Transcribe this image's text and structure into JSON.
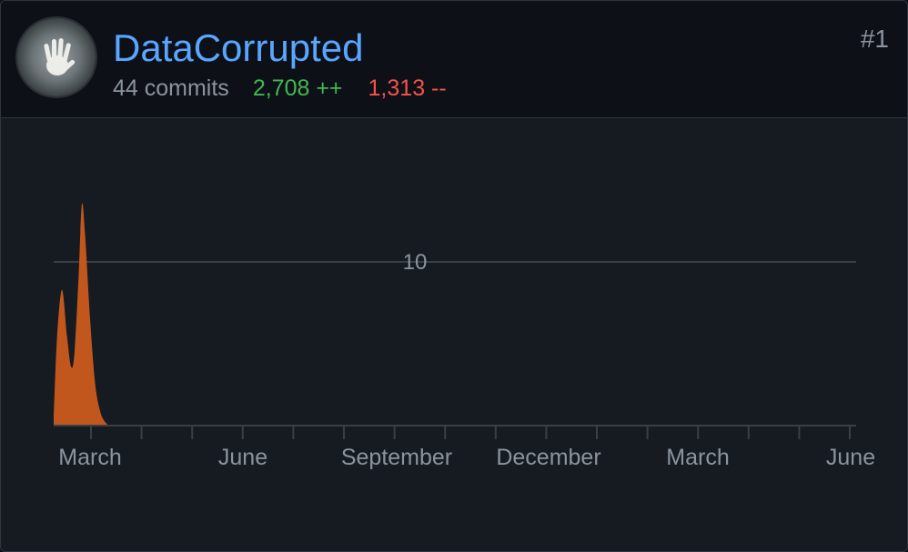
{
  "contributor": {
    "username": "DataCorrupted",
    "commits": "44 commits",
    "additions": "2,708 ++",
    "deletions": "1,313 --",
    "rank": "#1"
  },
  "colors": {
    "accent": "#58a6ff",
    "additions": "#3fb950",
    "deletions": "#f85149",
    "area": "#c2571e",
    "grid": "#3a3f46",
    "text_muted": "#8b949e"
  },
  "chart_data": {
    "type": "area",
    "title": "",
    "xlabel": "",
    "ylabel": "",
    "x_ticks": [
      "March",
      "June",
      "September",
      "December",
      "March",
      "June"
    ],
    "y_ticks": [
      10
    ],
    "ylim": [
      0,
      13.5
    ],
    "grid": true,
    "x": [
      0,
      0.4,
      1,
      1.6,
      2.1,
      2.5,
      3,
      3.4,
      3.8,
      4.4,
      5,
      5.6,
      6.1,
      6.7,
      7.2,
      8,
      9
    ],
    "y": [
      0.5,
      5.3,
      8.3,
      5.5,
      3.6,
      4.4,
      9.0,
      13.5,
      11.6,
      6.5,
      2.6,
      0.9,
      0.3,
      0,
      0,
      0,
      0
    ]
  }
}
